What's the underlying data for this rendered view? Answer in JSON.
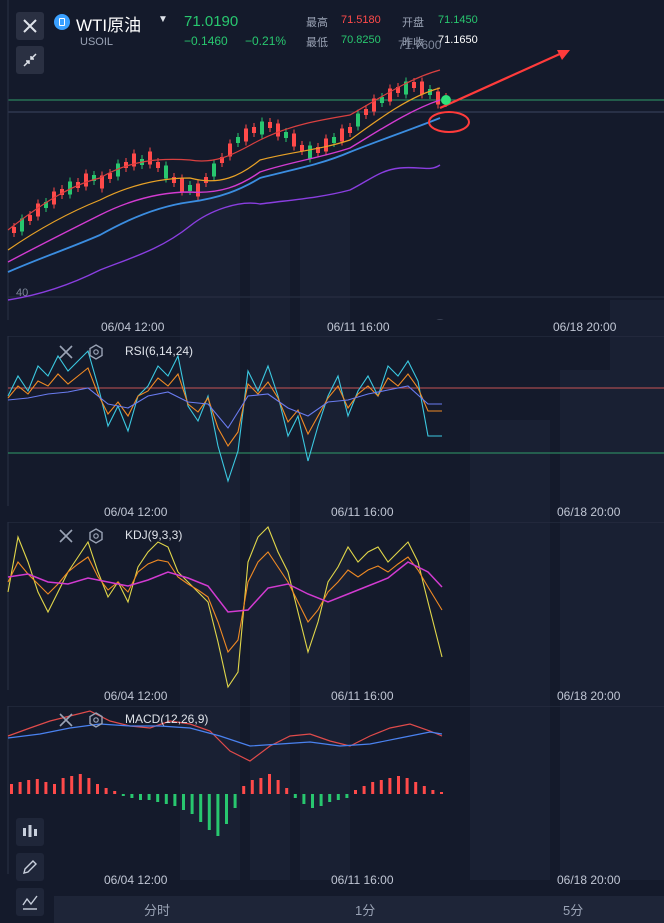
{
  "symbol": {
    "name": "WTI原油",
    "code": "USOIL",
    "price": "71.0190",
    "change": "−0.1460",
    "change_pct": "−0.21%"
  },
  "stats": {
    "high_label": "最高",
    "high": "71.5180",
    "open_label": "开盘",
    "open": "71.1450",
    "low_label": "最低",
    "low": "70.8250",
    "prev_label": "昨收",
    "prev": "71.1650"
  },
  "main_chart": {
    "peak_label": "71.7600",
    "axis_value": "40",
    "dates": [
      "06/04 12:00",
      "06/11 16:00",
      "06/18 20:00"
    ]
  },
  "rsi": {
    "label": "RSI(6,14,24)",
    "dates": [
      "06/04 12:00",
      "06/11 16:00",
      "06/18 20:00"
    ]
  },
  "kdj": {
    "label": "KDJ(9,3,3)",
    "dates": [
      "06/04 12:00",
      "06/11 16:00",
      "06/18 20:00"
    ]
  },
  "macd": {
    "label": "MACD(12,26,9)",
    "dates": [
      "06/04 12:00",
      "06/11 16:00",
      "06/18 20:00"
    ]
  },
  "timeframes": [
    "分时",
    "1分",
    "5分"
  ],
  "colors": {
    "up": "#ff4a4a",
    "down": "#28c76f",
    "background": "#141a2b",
    "annotation": "#ff3b3b"
  }
}
